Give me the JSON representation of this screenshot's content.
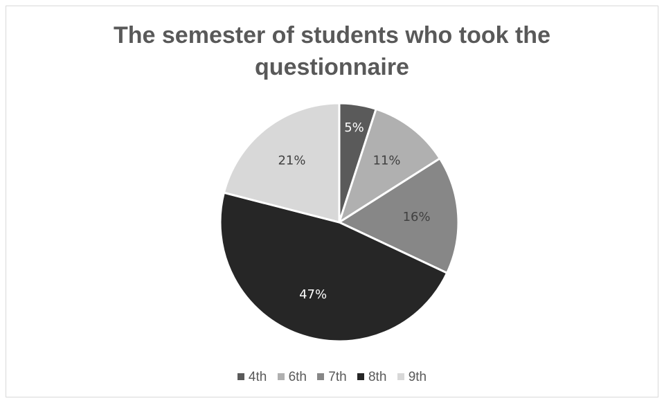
{
  "chart_data": {
    "type": "pie",
    "title_lines": [
      "The semester of students who took the",
      "questionnaire"
    ],
    "categories": [
      "4th",
      "6th",
      "7th",
      "8th",
      "9th"
    ],
    "values": [
      5,
      11,
      16,
      47,
      21
    ],
    "labels": [
      "5%",
      "11%",
      "16%",
      "47%",
      "21%"
    ],
    "colors": [
      "#5a5a5a",
      "#b0b0b0",
      "#878787",
      "#262626",
      "#d8d8d8"
    ],
    "label_colors": [
      "#ffffff",
      "#404040",
      "#404040",
      "#ffffff",
      "#404040"
    ],
    "legend_position": "bottom"
  }
}
